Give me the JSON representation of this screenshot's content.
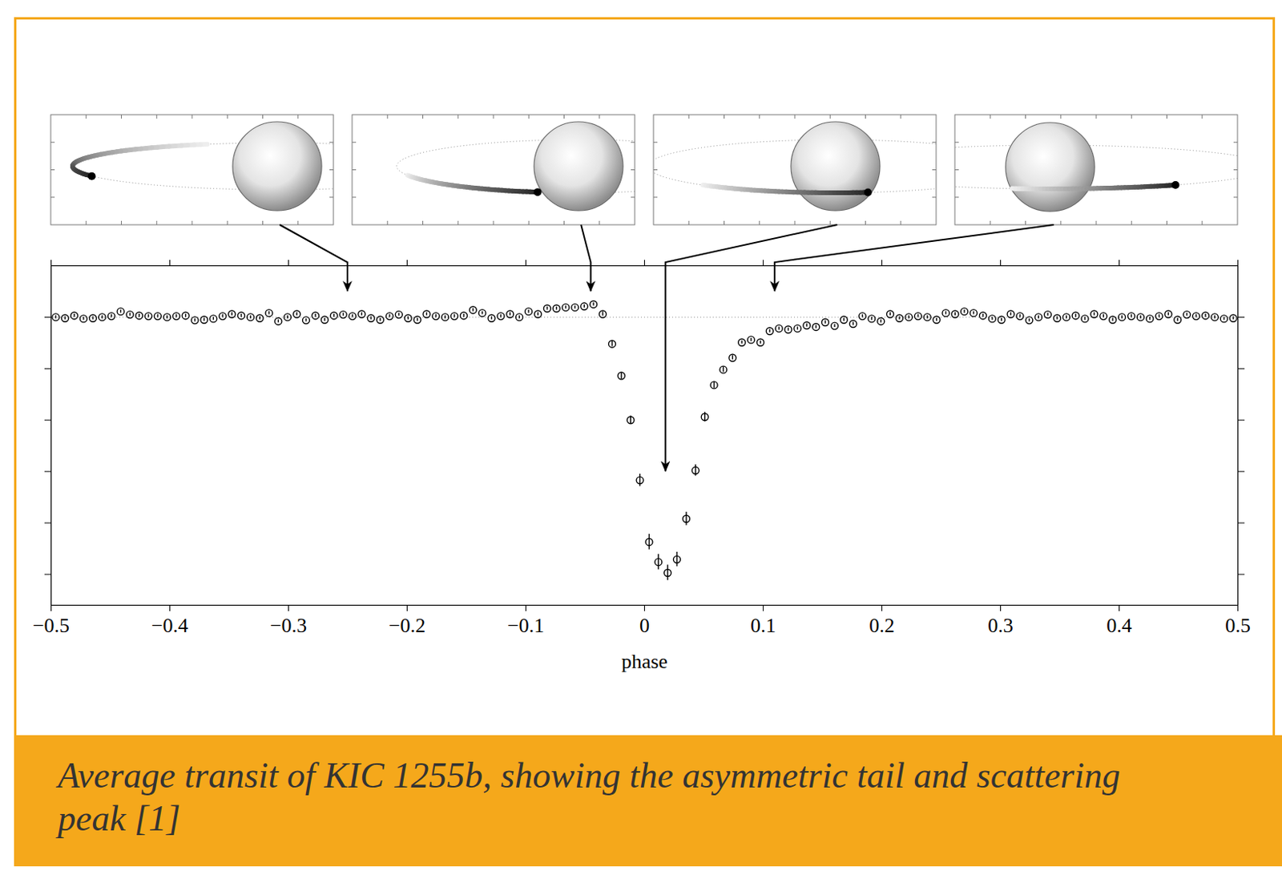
{
  "chart_data": {
    "type": "scatter",
    "x_label": "phase",
    "caption": "Average transit of KIC 1255b, showing the asymmetric tail and scattering peak [1]",
    "xlim": [
      -0.5,
      0.5
    ],
    "xticks": [
      -0.5,
      -0.4,
      -0.3,
      -0.2,
      -0.1,
      0,
      0.1,
      0.2,
      0.3,
      0.4,
      0.5
    ],
    "ylim": [
      0.9944,
      1.001
    ],
    "yticks": [
      0.995,
      0.996,
      0.997,
      0.998,
      0.999,
      1
    ],
    "tick_labels": "x",
    "marker": "open circle",
    "color": "#000000",
    "reference_line": 1,
    "x": [
      -0.4961,
      -0.4883,
      -0.4805,
      -0.4727,
      -0.4648,
      -0.457,
      -0.4492,
      -0.4414,
      -0.4336,
      -0.4258,
      -0.418,
      -0.4102,
      -0.4023,
      -0.3945,
      -0.3867,
      -0.3789,
      -0.3711,
      -0.3633,
      -0.3555,
      -0.3477,
      -0.3398,
      -0.332,
      -0.3242,
      -0.3164,
      -0.3086,
      -0.3008,
      -0.293,
      -0.2852,
      -0.2773,
      -0.2695,
      -0.2617,
      -0.2539,
      -0.2461,
      -0.2383,
      -0.2305,
      -0.2227,
      -0.2148,
      -0.207,
      -0.1992,
      -0.1914,
      -0.1836,
      -0.1758,
      -0.168,
      -0.1602,
      -0.1523,
      -0.1445,
      -0.1367,
      -0.1289,
      -0.1211,
      -0.1133,
      -0.1055,
      -0.0977,
      -0.0898,
      -0.082,
      -0.0742,
      -0.0664,
      -0.0586,
      -0.0508,
      -0.043,
      -0.0352,
      -0.0273,
      -0.0195,
      -0.0117,
      -0.0039,
      0.0039,
      0.0117,
      0.0195,
      0.0273,
      0.0352,
      0.043,
      0.0508,
      0.0586,
      0.0664,
      0.0742,
      0.082,
      0.0898,
      0.0977,
      0.1055,
      0.1133,
      0.1211,
      0.1289,
      0.1367,
      0.1445,
      0.1523,
      0.1602,
      0.168,
      0.1758,
      0.1836,
      0.1914,
      0.1992,
      0.207,
      0.2148,
      0.2227,
      0.2305,
      0.2383,
      0.2461,
      0.2539,
      0.2617,
      0.2695,
      0.2773,
      0.2852,
      0.293,
      0.3008,
      0.3086,
      0.3164,
      0.3242,
      0.332,
      0.3398,
      0.3477,
      0.3555,
      0.3633,
      0.3711,
      0.3789,
      0.3867,
      0.3945,
      0.4023,
      0.4102,
      0.418,
      0.4258,
      0.4336,
      0.4414,
      0.4492,
      0.457,
      0.4648,
      0.4727,
      0.4805,
      0.4883,
      0.4961
    ],
    "values": [
      1.0,
      0.99998,
      1.00003,
      0.99997,
      0.99998,
      1.0,
      1.00002,
      1.00011,
      1.00005,
      1.00003,
      1.00002,
      1.00002,
      1.0,
      1.00002,
      1.00003,
      0.99994,
      0.99995,
      0.99997,
      1.00002,
      1.00006,
      1.00003,
      1.0,
      0.99998,
      1.00008,
      0.99992,
      1.0,
      1.00006,
      0.99994,
      1.00003,
      0.99995,
      1.00003,
      1.00005,
      1.00002,
      1.00006,
      0.99998,
      0.99995,
      1.00002,
      1.00005,
      0.99998,
      0.99995,
      1.00006,
      1.00002,
      1.0,
      1.00002,
      1.00003,
      1.00014,
      1.00008,
      0.99998,
      1.00002,
      1.00006,
      1.0,
      1.00011,
      1.00006,
      1.00017,
      1.00017,
      1.00019,
      1.00019,
      1.00021,
      1.00025,
      1.00006,
      0.99948,
      0.99886,
      0.998,
      0.99683,
      0.99563,
      0.99524,
      0.99503,
      0.99529,
      0.99608,
      0.99702,
      0.99806,
      0.99868,
      0.99898,
      0.99921,
      0.99951,
      0.99956,
      0.99951,
      0.99973,
      0.99978,
      0.99976,
      0.99978,
      0.99984,
      0.99981,
      0.9999,
      0.99983,
      0.99995,
      0.99987,
      1.00002,
      0.99997,
      0.99992,
      1.00006,
      0.99998,
      1.0,
      1.00002,
      1.0,
      0.99995,
      1.00008,
      1.00006,
      1.00011,
      1.00008,
      1.00003,
      0.99997,
      0.99995,
      1.00006,
      1.00002,
      0.99994,
      1.0,
      1.00005,
      0.99998,
      1.0,
      1.00003,
      0.99997,
      1.00006,
      1.00002,
      0.99995,
      1.0,
      1.00002,
      1.0,
      0.99997,
      1.00002,
      1.00006,
      0.99995,
      1.00005,
      1.00002,
      1.00003,
      1.0,
      0.99997,
      0.99998
    ],
    "errors": [
      3e-05,
      3e-05,
      3e-05,
      3e-05,
      3e-05,
      3e-05,
      3e-05,
      3e-05,
      3e-05,
      3e-05,
      3e-05,
      3e-05,
      3e-05,
      3e-05,
      3e-05,
      3e-05,
      3e-05,
      3e-05,
      3e-05,
      3e-05,
      3e-05,
      3e-05,
      3e-05,
      3e-05,
      3e-05,
      3e-05,
      3e-05,
      3e-05,
      3e-05,
      3e-05,
      3e-05,
      3e-05,
      3e-05,
      3e-05,
      3e-05,
      3e-05,
      3e-05,
      3e-05,
      3e-05,
      3e-05,
      3e-05,
      3e-05,
      3e-05,
      3e-05,
      3e-05,
      3e-05,
      3e-05,
      3e-05,
      3e-05,
      3e-05,
      3e-05,
      3e-05,
      3e-05,
      3e-05,
      3e-05,
      3e-05,
      3e-05,
      3e-05,
      3e-05,
      4e-05,
      5e-05,
      6e-05,
      8e-05,
      0.00012,
      0.00015,
      0.00015,
      0.00015,
      0.00014,
      0.00013,
      0.00011,
      9e-05,
      6e-05,
      5e-05,
      4e-05,
      3e-05,
      3e-05,
      3e-05,
      3e-05,
      3e-05,
      3e-05,
      3e-05,
      3e-05,
      3e-05,
      3e-05,
      3e-05,
      3e-05,
      3e-05,
      3e-05,
      3e-05,
      3e-05,
      3e-05,
      3e-05,
      3e-05,
      3e-05,
      3e-05,
      3e-05,
      3e-05,
      3e-05,
      3e-05,
      3e-05,
      3e-05,
      3e-05,
      3e-05,
      3e-05,
      3e-05,
      3e-05,
      3e-05,
      3e-05,
      3e-05,
      3e-05,
      3e-05,
      3e-05,
      3e-05,
      3e-05,
      3e-05,
      3e-05,
      3e-05,
      3e-05,
      3e-05,
      3e-05,
      3e-05,
      3e-05,
      3e-05,
      3e-05,
      3e-05,
      3e-05,
      3e-05,
      3e-05
    ],
    "insets": [
      {
        "phase": -0.25,
        "flux": 1.0005
      },
      {
        "phase": -0.045,
        "flux": 1.0005
      },
      {
        "phase": 0.018,
        "flux": 0.997
      },
      {
        "phase": 0.11,
        "flux": 1.0005
      }
    ]
  }
}
